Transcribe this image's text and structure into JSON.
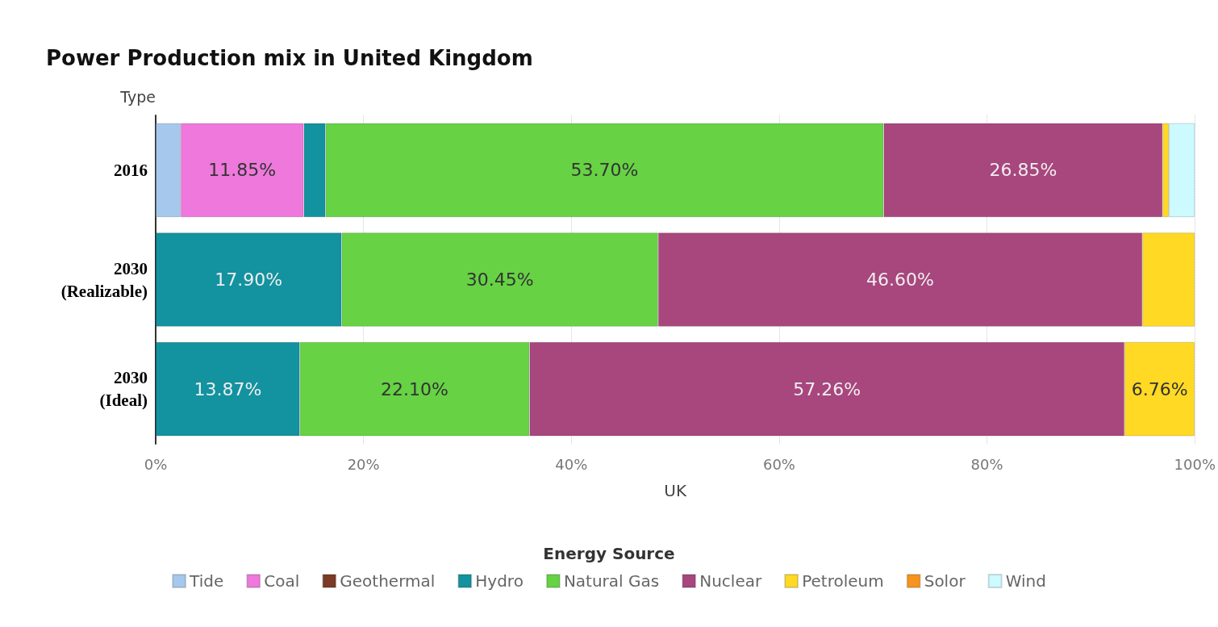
{
  "chart_data": {
    "type": "bar",
    "orientation": "horizontal",
    "stacked": true,
    "title": "Power Production mix in United Kingdom",
    "xlabel": "UK",
    "ylabel": "Type",
    "legend_title": "Energy Source",
    "legend": "bottom",
    "grid": "x",
    "categories": [
      "2016",
      "2030\n(Realizable)",
      "2030\n(Ideal)"
    ],
    "xlim": [
      0,
      100
    ],
    "xticks": [
      {
        "value": 0,
        "label": "0%"
      },
      {
        "value": 20,
        "label": "20%"
      },
      {
        "value": 40,
        "label": "40%"
      },
      {
        "value": 60,
        "label": "60%"
      },
      {
        "value": 80,
        "label": "80%"
      },
      {
        "value": 100,
        "label": "100%"
      }
    ],
    "series": [
      {
        "name": "Tide",
        "color": "#a6c8ec",
        "values": [
          2.4,
          null,
          null
        ]
      },
      {
        "name": "Coal",
        "color": "#ee78dc",
        "values": [
          11.85,
          null,
          null
        ],
        "value_labels": [
          "11.85%",
          null,
          null
        ]
      },
      {
        "name": "Geothermal",
        "color": "#7b3b24",
        "values": [
          null,
          null,
          null
        ]
      },
      {
        "name": "Hydro",
        "color": "#13929f",
        "values": [
          2.1,
          17.9,
          13.87
        ],
        "value_labels": [
          null,
          "17.90%",
          "13.87%"
        ]
      },
      {
        "name": "Natural Gas",
        "color": "#66d244",
        "values": [
          53.7,
          30.45,
          22.1
        ],
        "value_labels": [
          "53.70%",
          "30.45%",
          "22.10%"
        ]
      },
      {
        "name": "Nuclear",
        "color": "#a8467e",
        "values": [
          26.85,
          46.6,
          57.26
        ],
        "value_labels": [
          "26.85%",
          "46.60%",
          "57.26%"
        ]
      },
      {
        "name": "Petroleum",
        "color": "#ffd924",
        "values": [
          0.6,
          5.05,
          6.76
        ],
        "value_labels": [
          null,
          null,
          "6.76%"
        ]
      },
      {
        "name": "Solor",
        "color": "#f7941d",
        "values": [
          null,
          null,
          null
        ]
      },
      {
        "name": "Wind",
        "color": "#ccfaff",
        "values": [
          2.5,
          null,
          null
        ]
      }
    ]
  }
}
